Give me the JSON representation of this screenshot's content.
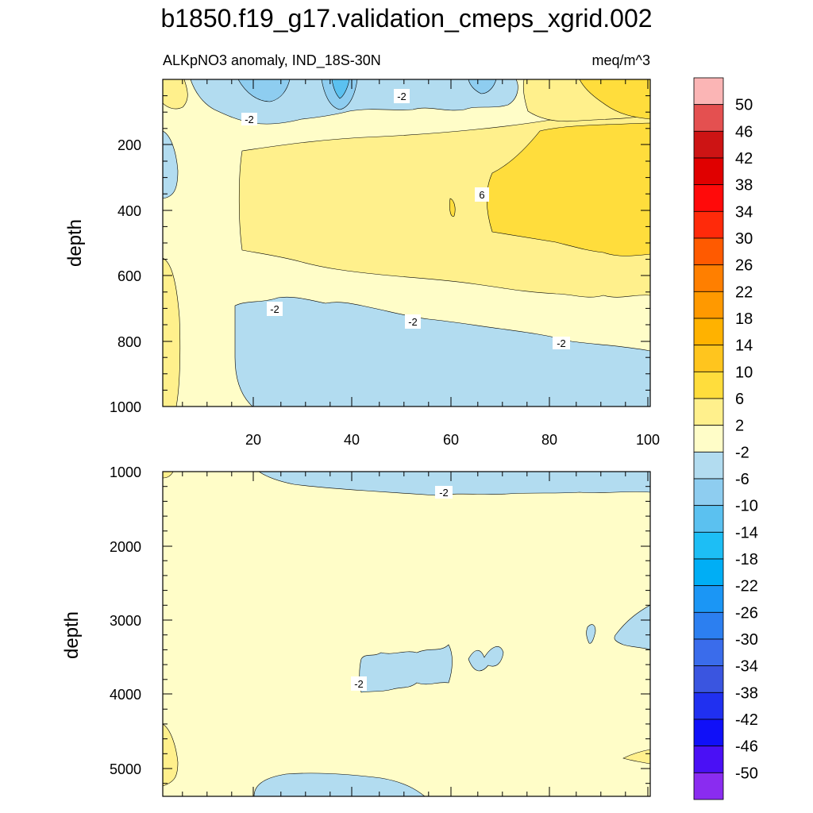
{
  "chart_data": [
    {
      "type": "heatmap",
      "title": "b1850.f19_g17.validation_cmeps_xgrid.002",
      "left_string": "ALKpNO3 anomaly, IND_18S-30N",
      "right_string": "meq/m^3",
      "ylabel": "depth",
      "xlim": [
        1,
        101
      ],
      "ylim": [
        1000,
        0
      ],
      "x_ticks": [
        "20",
        "40",
        "60",
        "80",
        "100"
      ],
      "y_ticks": [
        "200",
        "400",
        "600",
        "800",
        "1000"
      ],
      "contour_labels": [
        "-2",
        "-2",
        "-2",
        "-2",
        "-2",
        "6"
      ],
      "regions": [
        {
          "level": "2 to 6",
          "x_range": [
            2,
            101
          ],
          "depth_range": [
            180,
            640
          ]
        },
        {
          "level": "6 to 10",
          "x_range": [
            65,
            101
          ],
          "depth_range": [
            180,
            560
          ]
        },
        {
          "level": "-2 to 2",
          "x_range": [
            1,
            101
          ],
          "depth_range": [
            0,
            1000
          ]
        },
        {
          "level": "-6 to -2",
          "x_range": [
            20,
            101
          ],
          "depth_range": [
            700,
            1000
          ]
        },
        {
          "level": "-6 to -2",
          "x_range": [
            8,
            70
          ],
          "depth_range": [
            0,
            150
          ]
        }
      ]
    },
    {
      "type": "heatmap",
      "ylabel": "depth",
      "xlim": [
        1,
        101
      ],
      "ylim": [
        5300,
        1000
      ],
      "y_ticks": [
        "1000",
        "2000",
        "3000",
        "4000",
        "5000"
      ],
      "contour_labels": [
        "-2",
        "-2"
      ],
      "regions": [
        {
          "level": "-2 to 2",
          "x_range": [
            1,
            101
          ],
          "depth_range": [
            1000,
            5300
          ]
        },
        {
          "level": "-6 to -2",
          "x_range": [
            20,
            101
          ],
          "depth_range": [
            1000,
            1300
          ]
        },
        {
          "level": "-6 to -2",
          "x_range": [
            42,
            70
          ],
          "depth_range": [
            3500,
            3950
          ]
        },
        {
          "level": "-6 to -2",
          "x_range": [
            92,
            101
          ],
          "depth_range": [
            2800,
            3400
          ]
        },
        {
          "level": "-6 to -2",
          "x_range": [
            20,
            55
          ],
          "depth_range": [
            5100,
            5300
          ]
        }
      ]
    }
  ],
  "colorbar": {
    "labels": [
      "50",
      "46",
      "42",
      "38",
      "34",
      "30",
      "26",
      "22",
      "18",
      "14",
      "10",
      "6",
      "2",
      "-2",
      "-6",
      "-10",
      "-14",
      "-18",
      "-22",
      "-26",
      "-30",
      "-34",
      "-38",
      "-42",
      "-46",
      "-50"
    ],
    "colors": [
      "#fbb5b5",
      "#e45050",
      "#cd1414",
      "#e00000",
      "#ff0a0a",
      "#ff2a0a",
      "#ff5a00",
      "#ff7f00",
      "#ff9900",
      "#ffb200",
      "#ffc51e",
      "#ffdd3c",
      "#fff08c",
      "#fffdc8",
      "#b2dcf0",
      "#8ecdf0",
      "#5bc1f0",
      "#1dbef5",
      "#00aef5",
      "#1b96f5",
      "#2c7ff0",
      "#3a6ceb",
      "#3a55e0",
      "#2030f0",
      "#1010f8",
      "#4a10f5",
      "#8a2cf0"
    ]
  }
}
